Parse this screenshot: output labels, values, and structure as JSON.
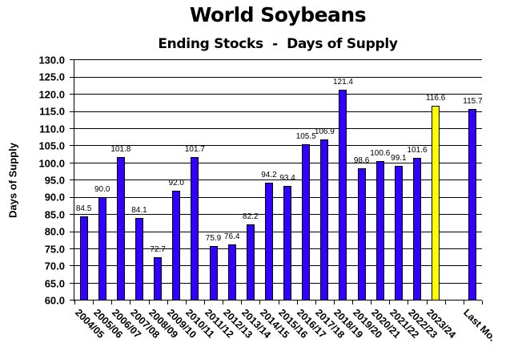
{
  "chart_data": {
    "type": "bar",
    "title": "World Soybeans",
    "subtitle": "Ending Stocks  -  Days of Supply",
    "xlabel": "",
    "ylabel": "Days of Supply",
    "ylim": [
      60.0,
      130.0
    ],
    "ytick_step": 5.0,
    "yticks": [
      "130.0",
      "125.0",
      "120.0",
      "115.0",
      "110.0",
      "105.0",
      "100.0",
      "95.0",
      "90.0",
      "85.0",
      "80.0",
      "75.0",
      "70.0",
      "65.0",
      "60.0"
    ],
    "grid": true,
    "legend": null,
    "categories": [
      "2004/05",
      "2005/06",
      "2006/07",
      "2007/08",
      "2008/09",
      "2009/10",
      "2010/11",
      "2011/12",
      "2012/13",
      "2013/14",
      "2014/15",
      "2015/16",
      "2016/17",
      "2017/18",
      "2018/19",
      "2019/20",
      "2020/21",
      "2021/22",
      "2022/23",
      "2023/24",
      "",
      "Last Mo."
    ],
    "values": [
      84.5,
      90.0,
      101.8,
      84.1,
      72.7,
      92.0,
      101.7,
      75.9,
      76.4,
      82.2,
      94.2,
      93.4,
      105.5,
      106.9,
      121.4,
      98.6,
      100.6,
      99.1,
      101.6,
      116.6,
      null,
      115.7
    ],
    "value_labels": [
      "84.5",
      "90.0",
      "101.8",
      "84.1",
      "72.7",
      "92.0",
      "101.7",
      "75.9",
      "76.4",
      "82.2",
      "94.2",
      "93.4",
      "105.5",
      "106.9",
      "121.4",
      "98.6",
      "100.6",
      "99.1",
      "101.6",
      "116.6",
      "",
      "115.7"
    ],
    "highlight_index": 19,
    "colors": {
      "bar": "#3300ff",
      "highlight": "#ffff00",
      "bar_border": "#000000",
      "grid": "#000000"
    }
  }
}
